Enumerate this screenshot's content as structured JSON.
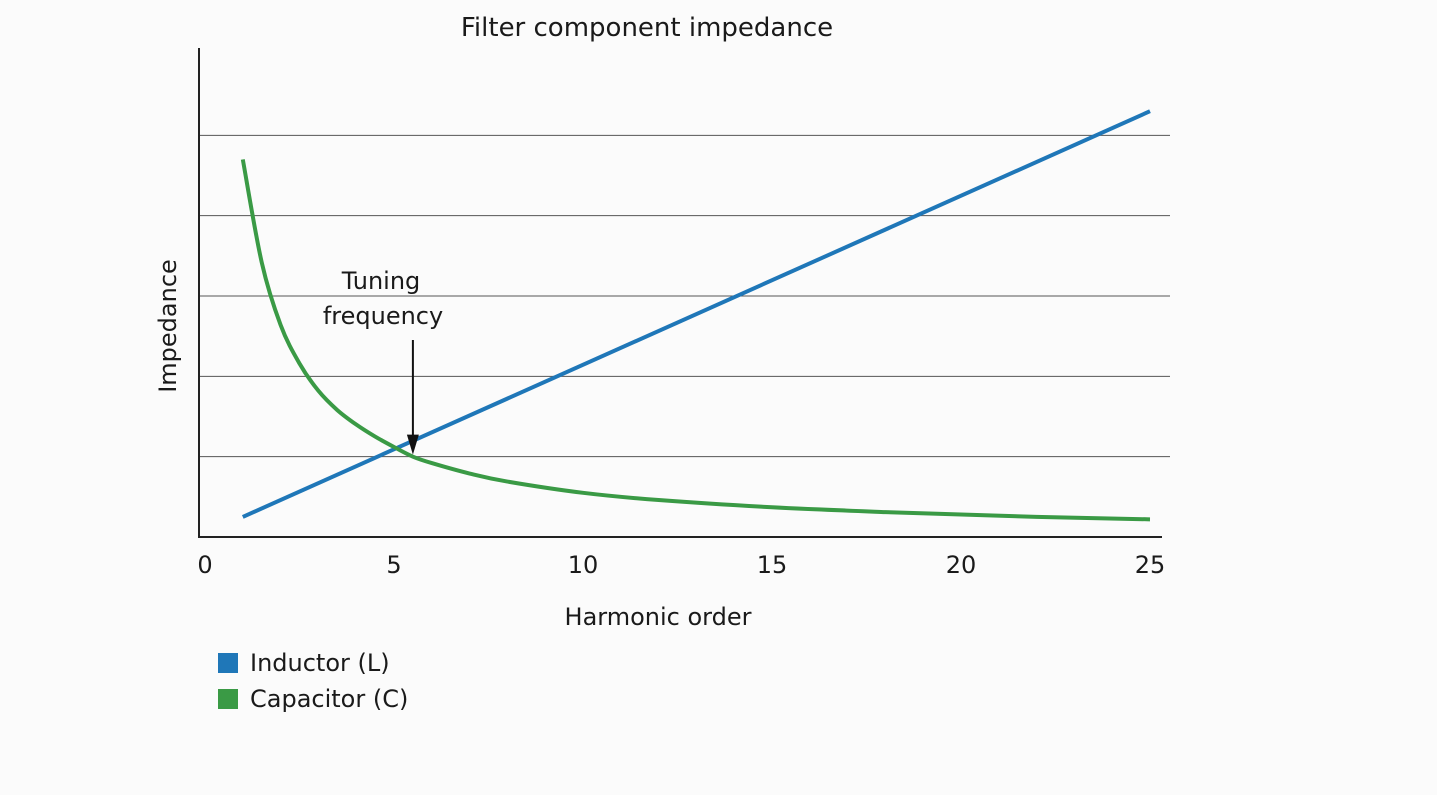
{
  "chart_data": {
    "type": "line",
    "title": "Filter component impedance",
    "xlabel": "Harmonic order",
    "ylabel": "Impedance",
    "xlim": [
      0,
      25
    ],
    "ylim": [
      0,
      6
    ],
    "x_ticks": [
      0,
      5,
      10,
      15,
      20,
      25
    ],
    "y_gridlines": [
      1,
      2,
      3,
      4,
      5
    ],
    "y_tick_labels_shown": false,
    "grid": "horizontal",
    "legend_position": "bottom-left",
    "series": [
      {
        "name": "Inductor (L)",
        "color": "#1f77b8",
        "x": [
          1,
          25
        ],
        "y": [
          0.25,
          5.3
        ]
      },
      {
        "name": "Capacitor (C)",
        "color": "#3a9a45",
        "x": [
          1,
          1.5,
          2,
          2.5,
          3,
          3.5,
          4,
          4.5,
          5,
          5.5,
          6,
          7,
          8,
          10,
          12,
          15,
          18,
          20,
          22,
          25
        ],
        "y": [
          4.7,
          3.42,
          2.64,
          2.16,
          1.82,
          1.58,
          1.4,
          1.25,
          1.12,
          1.0,
          0.92,
          0.79,
          0.69,
          0.55,
          0.46,
          0.37,
          0.31,
          0.28,
          0.25,
          0.22
        ]
      }
    ],
    "annotations": [
      {
        "text_lines": [
          "Tuning",
          "frequency"
        ],
        "arrow_to": {
          "x": 5.5,
          "y": 1.0
        }
      }
    ]
  }
}
